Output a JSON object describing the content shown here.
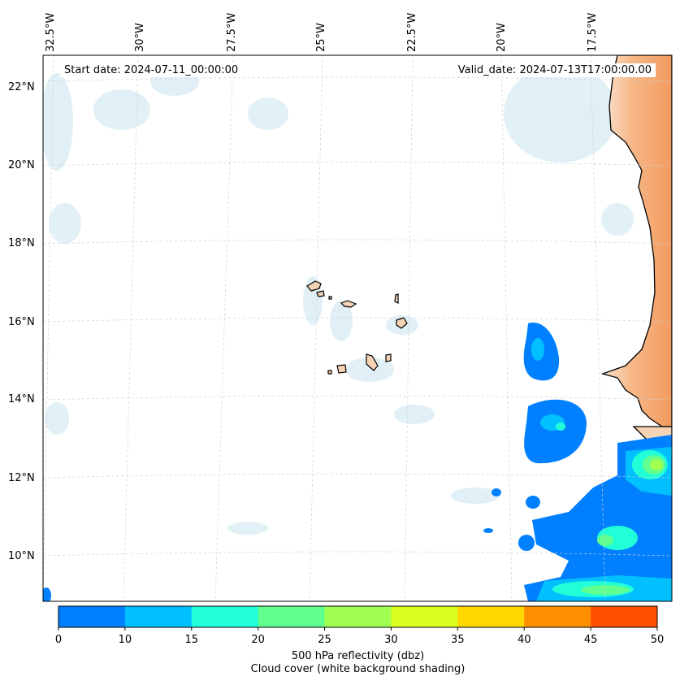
{
  "map": {
    "start_date": "Start date: 2024-07-11_00:00:00",
    "valid_date": "Valid_date: 2024-07-13T17:00:00.00",
    "lon_labels": [
      "32.5°W",
      "30°W",
      "27.5°W",
      "25°W",
      "22.5°W",
      "20°W",
      "17.5°W"
    ],
    "lat_labels": [
      "22°N",
      "20°N",
      "18°N",
      "16°N",
      "14°N",
      "12°N",
      "10°N"
    ],
    "extent": {
      "lon": [
        -32.5,
        -15.6
      ],
      "lat": [
        8.9,
        22.8
      ]
    },
    "region": "Cape Verde Islands and West African coast"
  },
  "colorbar": {
    "levels": [
      0,
      10,
      15,
      20,
      25,
      30,
      35,
      40,
      45,
      50
    ],
    "tick_labels": [
      "0",
      "10",
      "15",
      "20",
      "25",
      "30",
      "35",
      "40",
      "45",
      "50"
    ],
    "colors": [
      "#0080ff",
      "#00c0ff",
      "#20ffd8",
      "#60ff90",
      "#a0ff50",
      "#d8ff20",
      "#ffd800",
      "#ff9000",
      "#ff5000"
    ],
    "title_line1": "500 hPa reflectivity (dbz)",
    "title_line2": "Cloud cover (white background shading)"
  },
  "colors": {
    "land": "#f7d3b5",
    "desert": "#f4a56e",
    "cloud": "#cfe8f0",
    "grid": "#c8c8c8"
  }
}
